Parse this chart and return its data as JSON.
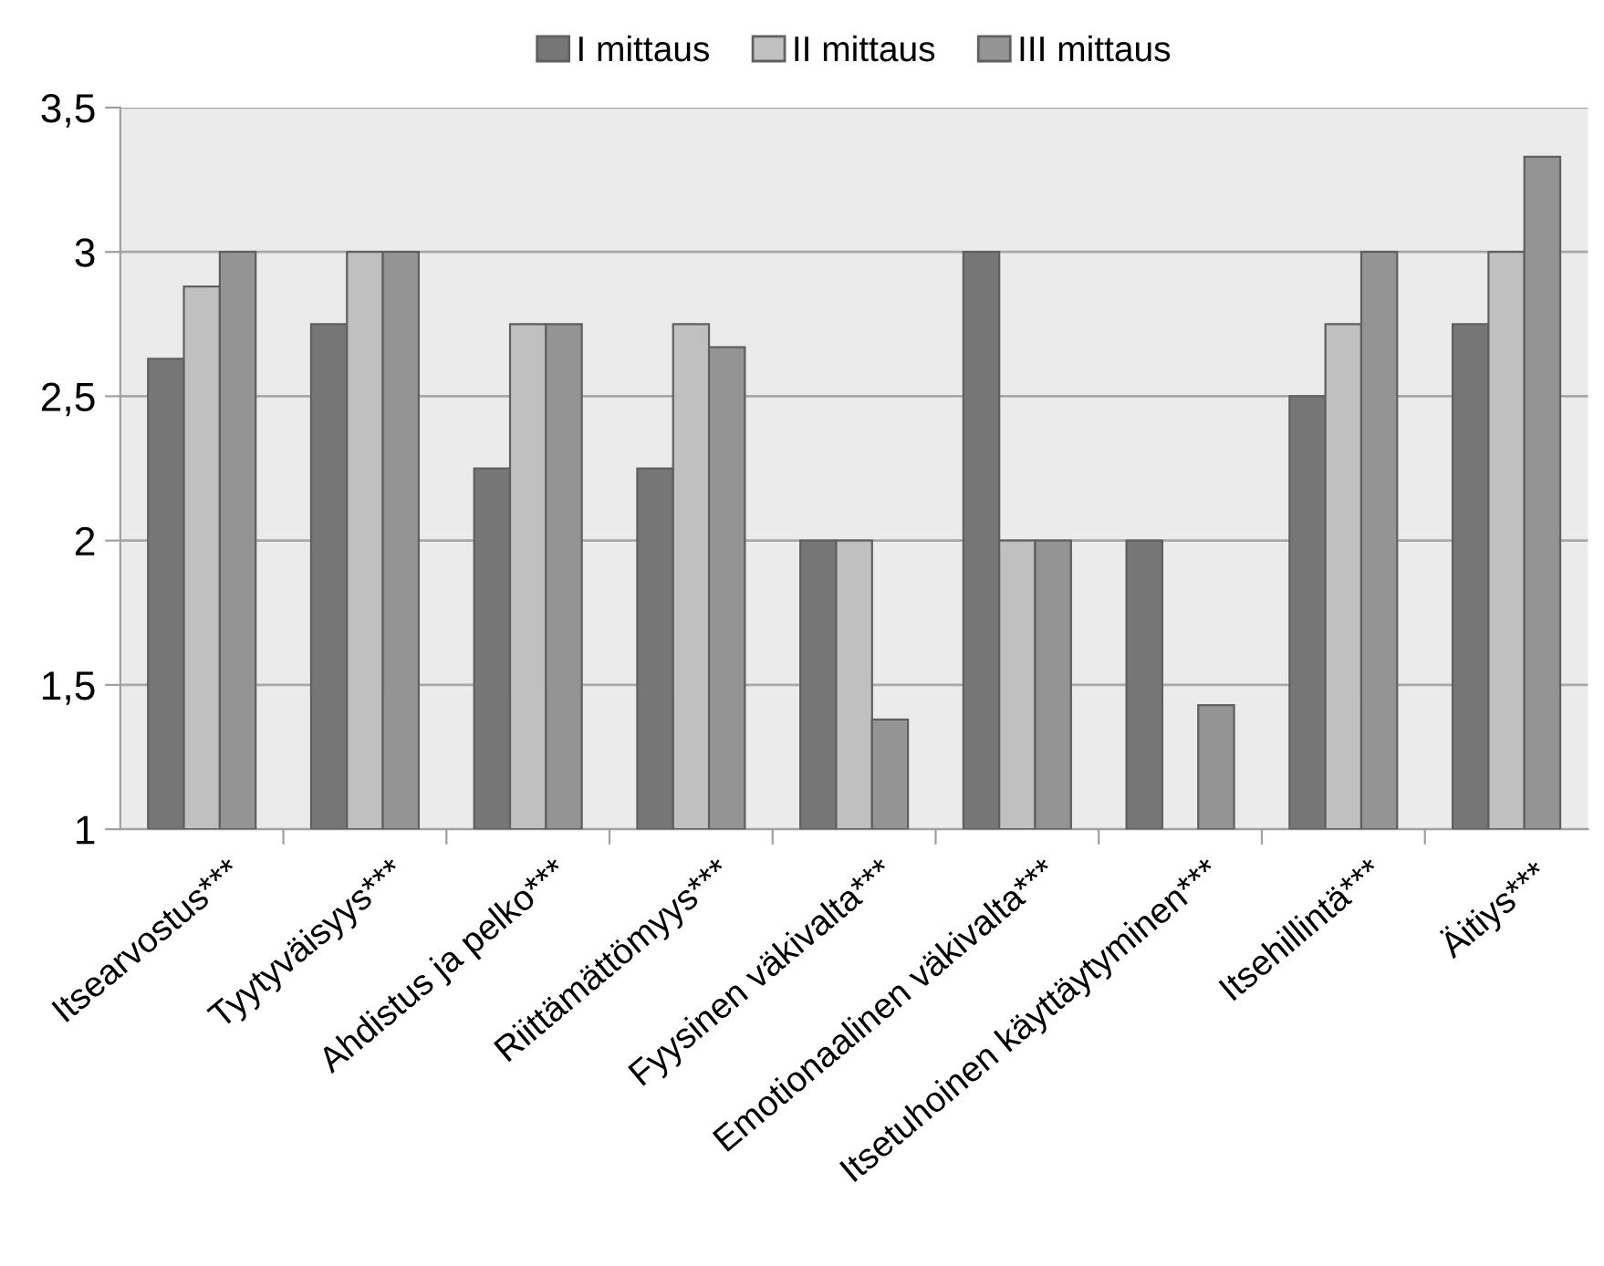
{
  "chart_data": {
    "type": "bar",
    "categories": [
      "Itsearvostus***",
      "Tyytyväisyys***",
      "Ahdistus ja pelko***",
      "Riittämättömyys***",
      "Fyysinen väkivalta***",
      "Emotionaalinen väkivalta***",
      "Itsetuhoinen käyttäytyminen***",
      "Itsehillintä***",
      "Äitiys***"
    ],
    "series": [
      {
        "name": "I mittaus",
        "color": "#767676",
        "values": [
          2.63,
          2.75,
          2.25,
          2.25,
          2,
          3,
          2,
          2.5,
          2.75
        ]
      },
      {
        "name": "II mittaus",
        "color": "#c0c0c0",
        "values": [
          2.88,
          3,
          2.75,
          2.75,
          2,
          2,
          null,
          2.75,
          3
        ]
      },
      {
        "name": "III mittaus",
        "color": "#949494",
        "values": [
          3,
          3,
          2.75,
          2.67,
          1.38,
          2,
          1.43,
          3,
          3.33
        ]
      }
    ],
    "ylim": [
      1,
      3.5
    ],
    "yticks": [
      {
        "value": 1,
        "label": "1"
      },
      {
        "value": 1.5,
        "label": "1,5"
      },
      {
        "value": 2,
        "label": "2"
      },
      {
        "value": 2.5,
        "label": "2,5"
      },
      {
        "value": 3,
        "label": "3"
      },
      {
        "value": 3.5,
        "label": "3,5"
      }
    ],
    "grid": "y",
    "legend": "top"
  }
}
